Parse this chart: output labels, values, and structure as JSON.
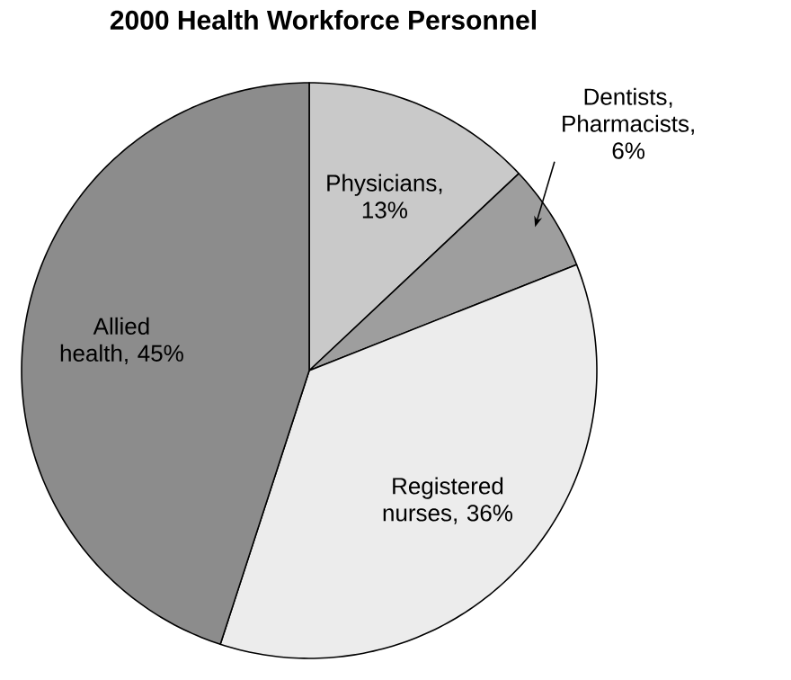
{
  "chart_data": {
    "type": "pie",
    "title": "2000 Health Workforce Personnel",
    "categories": [
      "Physicians, 13%",
      "Dentists, Pharmacists, 6%",
      "Registered nurses, 36%",
      "Allied health, 45%"
    ],
    "values": [
      13,
      6,
      36,
      45
    ],
    "colors": [
      "#c9c9c9",
      "#9e9e9e",
      "#ececec",
      "#8c8c8c"
    ]
  }
}
